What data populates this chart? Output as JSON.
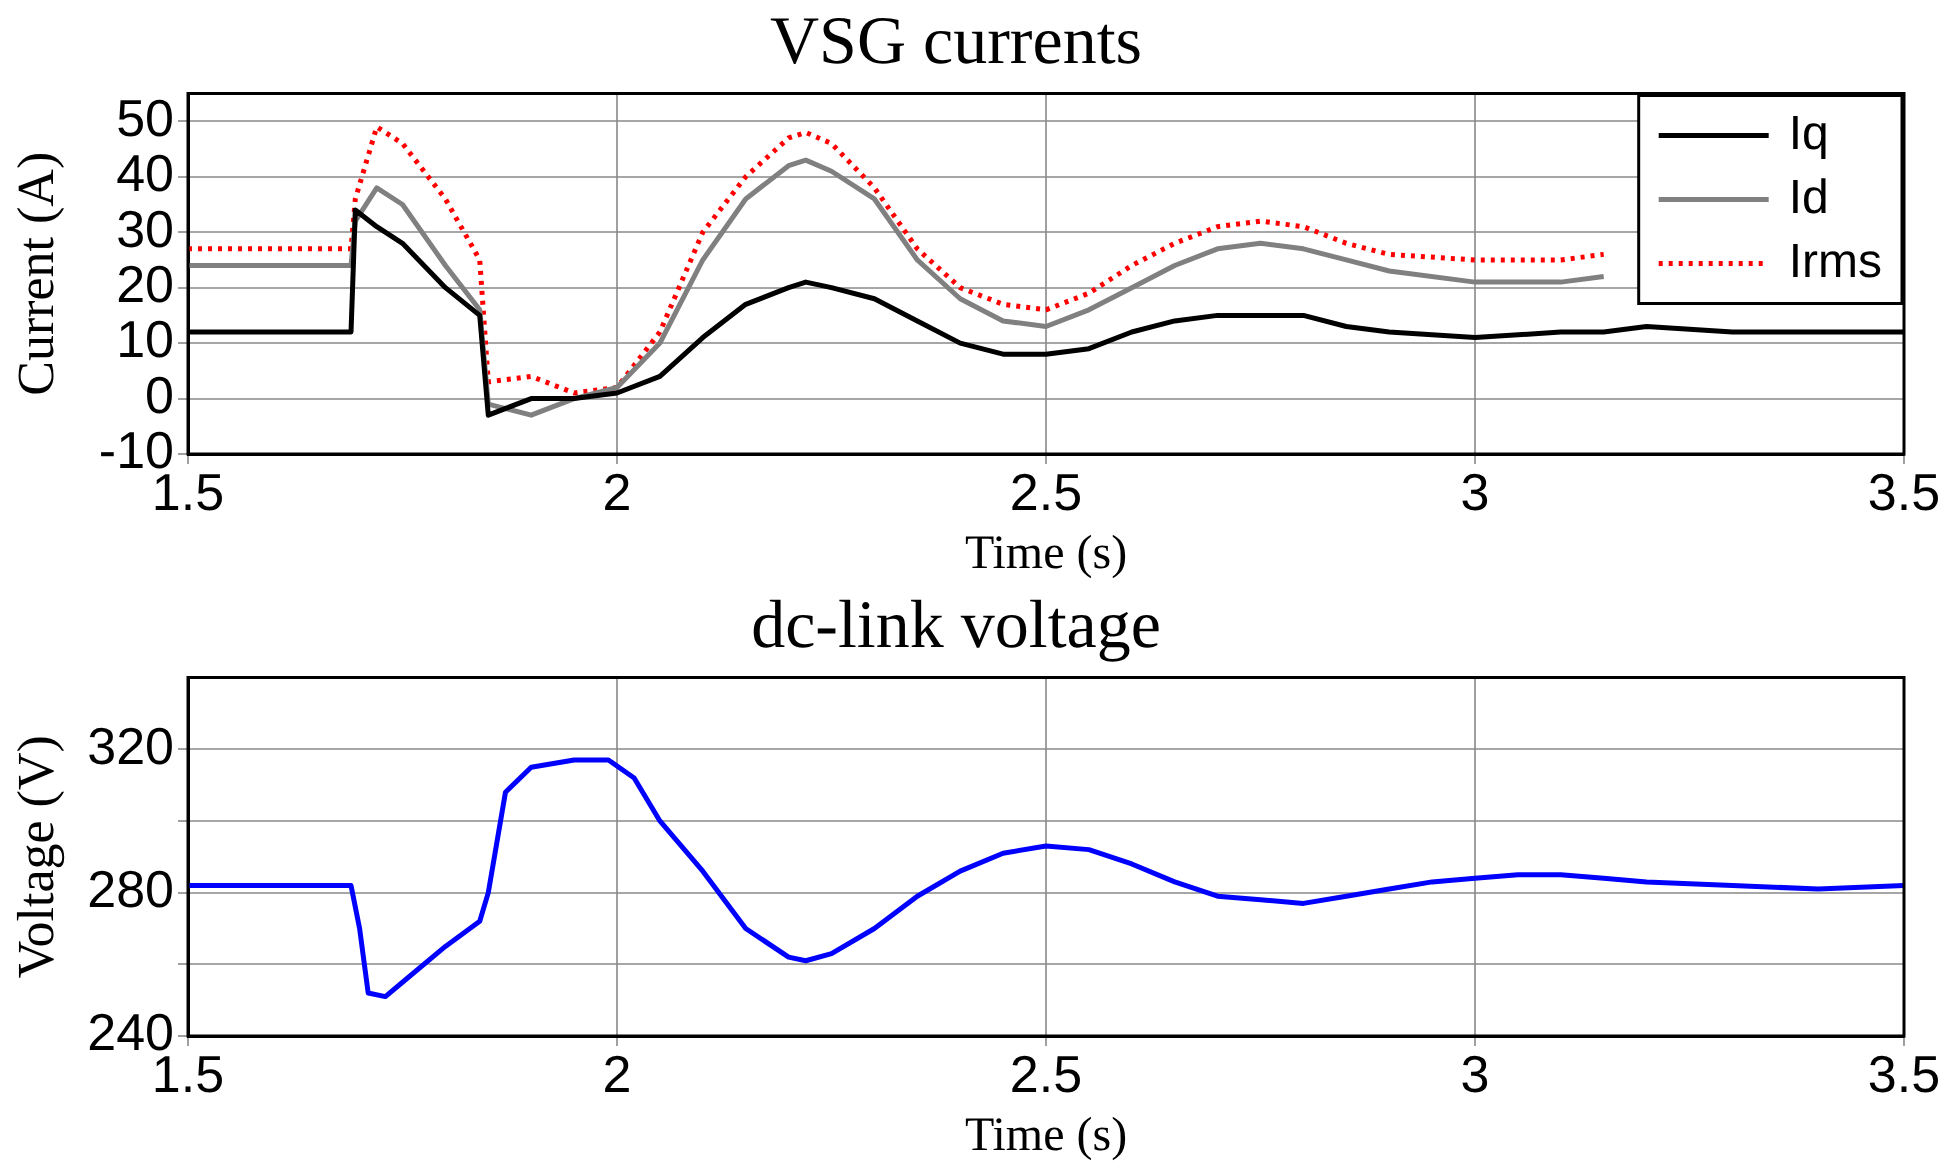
{
  "chart_data": [
    {
      "type": "line",
      "title": "VSG currents",
      "xlabel": "Time (s)",
      "ylabel": "Current (A)",
      "x": [
        1.5,
        1.69,
        1.695,
        1.72,
        1.75,
        1.8,
        1.84,
        1.85,
        1.9,
        1.95,
        2.0,
        2.05,
        2.1,
        2.15,
        2.2,
        2.22,
        2.25,
        2.3,
        2.35,
        2.4,
        2.45,
        2.5,
        2.55,
        2.6,
        2.65,
        2.7,
        2.75,
        2.8,
        2.85,
        2.9,
        3.0,
        3.1,
        3.15,
        3.2,
        3.3,
        3.4,
        3.5
      ],
      "series": [
        {
          "name": "Iq",
          "color": "#000000",
          "line_style": "solid",
          "values": [
            12,
            12,
            34,
            31,
            28,
            20,
            15,
            -3,
            0,
            0,
            1,
            4,
            11,
            17,
            20,
            21,
            20,
            18,
            14,
            10,
            8,
            8,
            9,
            12,
            14,
            15,
            15,
            15,
            13,
            12,
            11,
            12,
            12,
            13,
            12,
            12,
            12
          ]
        },
        {
          "name": "Id",
          "color": "#808080",
          "line_style": "solid",
          "values": [
            24,
            24,
            32,
            38,
            35,
            24,
            16,
            -1,
            -3,
            0,
            2,
            10,
            25,
            36,
            42,
            43,
            41,
            36,
            25,
            18,
            14,
            13,
            16,
            20,
            24,
            27,
            28,
            27,
            25,
            23,
            21,
            21,
            22,
            null,
            null,
            null,
            null
          ]
        },
        {
          "name": "Irms",
          "color": "#ff0000",
          "line_style": "dotted",
          "values": [
            27,
            27,
            36,
            49,
            46,
            36,
            25,
            3,
            4,
            1,
            2,
            12,
            30,
            40,
            47,
            48,
            46,
            38,
            27,
            20,
            17,
            16,
            19,
            24,
            28,
            31,
            32,
            31,
            28,
            26,
            25,
            25,
            26,
            null,
            null,
            null,
            null
          ]
        }
      ],
      "xlim": [
        1.5,
        3.5
      ],
      "xticks": [
        1.5,
        2,
        2.5,
        3,
        3.5
      ],
      "ylim": [
        -10,
        55
      ],
      "yticks": [
        -10,
        0,
        10,
        20,
        30,
        40,
        50
      ],
      "grid": true,
      "legend": "top right",
      "marker": "none"
    },
    {
      "type": "line",
      "title": "dc-link voltage",
      "xlabel": "Time (s)",
      "ylabel": "Voltage (V)",
      "x": [
        1.5,
        1.69,
        1.7,
        1.71,
        1.73,
        1.75,
        1.8,
        1.84,
        1.85,
        1.87,
        1.9,
        1.95,
        1.99,
        2.02,
        2.05,
        2.1,
        2.15,
        2.2,
        2.22,
        2.25,
        2.3,
        2.35,
        2.4,
        2.45,
        2.5,
        2.55,
        2.6,
        2.65,
        2.7,
        2.75,
        2.8,
        2.85,
        2.9,
        2.95,
        3.0,
        3.05,
        3.1,
        3.15,
        3.2,
        3.3,
        3.4,
        3.5
      ],
      "series": [
        {
          "color": "#0000ff",
          "line_style": "solid",
          "values": [
            282,
            282,
            270,
            252,
            251,
            255,
            265,
            272,
            280,
            308,
            315,
            317,
            317,
            312,
            300,
            286,
            270,
            262,
            261,
            263,
            270,
            279,
            286,
            291,
            293,
            292,
            288,
            283,
            279,
            278,
            277,
            279,
            281,
            283,
            284,
            285,
            285,
            284,
            283,
            282,
            281,
            282
          ]
        }
      ],
      "xlim": [
        1.5,
        3.5
      ],
      "xticks": [
        1.5,
        2,
        2.5,
        3,
        3.5
      ],
      "ylim": [
        240,
        340
      ],
      "yticks": [
        240,
        {
          "value": 260,
          "label": null
        },
        280,
        {
          "value": 300,
          "label": null
        },
        320
      ],
      "grid": true,
      "legend": false,
      "marker": "none"
    }
  ]
}
